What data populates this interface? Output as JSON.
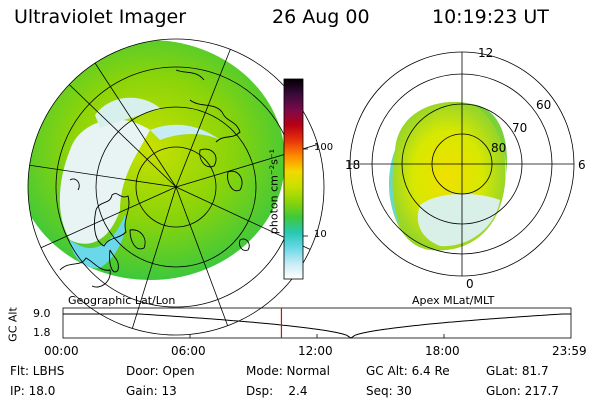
{
  "header": {
    "title": "Ultraviolet Imager",
    "date": "26 Aug 00",
    "time": "10:19:23 UT"
  },
  "geo_map": {
    "label": "Geographic Lat/Lon"
  },
  "colorbar": {
    "unit_label": "photon cm⁻²s⁻¹",
    "tick_labels": [
      "100",
      "10"
    ],
    "colors": [
      "#000000",
      "#3a0a3a",
      "#7a0a4a",
      "#b80014",
      "#e8340a",
      "#ff8a00",
      "#f4d800",
      "#c8e000",
      "#8ad40a",
      "#3ec83c",
      "#28c8b4",
      "#6ad8e8",
      "#c8ecf4",
      "#ffffff"
    ]
  },
  "polar_map": {
    "label": "Apex MLat/MLT",
    "mlt_labels": [
      "12",
      "18",
      "6",
      "0"
    ],
    "lat_labels": [
      "60",
      "70",
      "80"
    ]
  },
  "altitude_plot": {
    "ylabel": "GC Alt",
    "y_ticks": [
      "9.0",
      "1.8"
    ],
    "x_ticks": [
      "00:00",
      "06:00",
      "12:00",
      "18:00",
      "23:59"
    ],
    "current_time_hours": 10.32,
    "marker_color": "#d01010"
  },
  "info": {
    "row1": [
      "Flt: LBHS",
      "Door: Open",
      "Mode: Normal",
      "GC Alt: 6.4 Re",
      "GLat: 81.7"
    ],
    "row2": [
      "IP: 18.0",
      "Gain: 13",
      "Dsp:    2.4",
      "Seq: 30",
      "GLon: 217.7"
    ]
  }
}
